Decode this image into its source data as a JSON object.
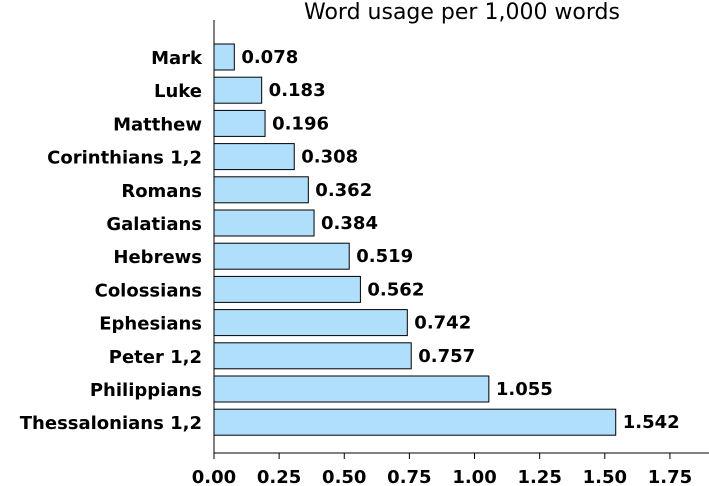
{
  "chart_data": {
    "type": "bar",
    "orientation": "horizontal",
    "title": "Word usage per 1,000 words",
    "xlabel": "",
    "ylabel": "",
    "categories": [
      "Mark",
      "Luke",
      "Matthew",
      "Corinthians 1,2",
      "Romans",
      "Galatians",
      "Hebrews",
      "Colossians",
      "Ephesians",
      "Peter 1,2",
      "Philippians",
      "Thessalonians 1,2"
    ],
    "values": [
      0.078,
      0.183,
      0.196,
      0.308,
      0.362,
      0.384,
      0.519,
      0.562,
      0.742,
      0.757,
      1.055,
      1.542
    ],
    "value_labels": [
      "0.078",
      "0.183",
      "0.196",
      "0.308",
      "0.362",
      "0.384",
      "0.519",
      "0.562",
      "0.742",
      "0.757",
      "1.055",
      "1.542"
    ],
    "xlim": [
      0,
      1.9
    ],
    "xticks": [
      "0.00",
      "0.25",
      "0.50",
      "0.75",
      "1.00",
      "1.25",
      "1.50",
      "1.75"
    ],
    "grid": false,
    "legend": "none",
    "colors": {
      "bar_fill": "#b0dffc",
      "bar_stroke": "#000000",
      "axis": "#000000"
    }
  }
}
